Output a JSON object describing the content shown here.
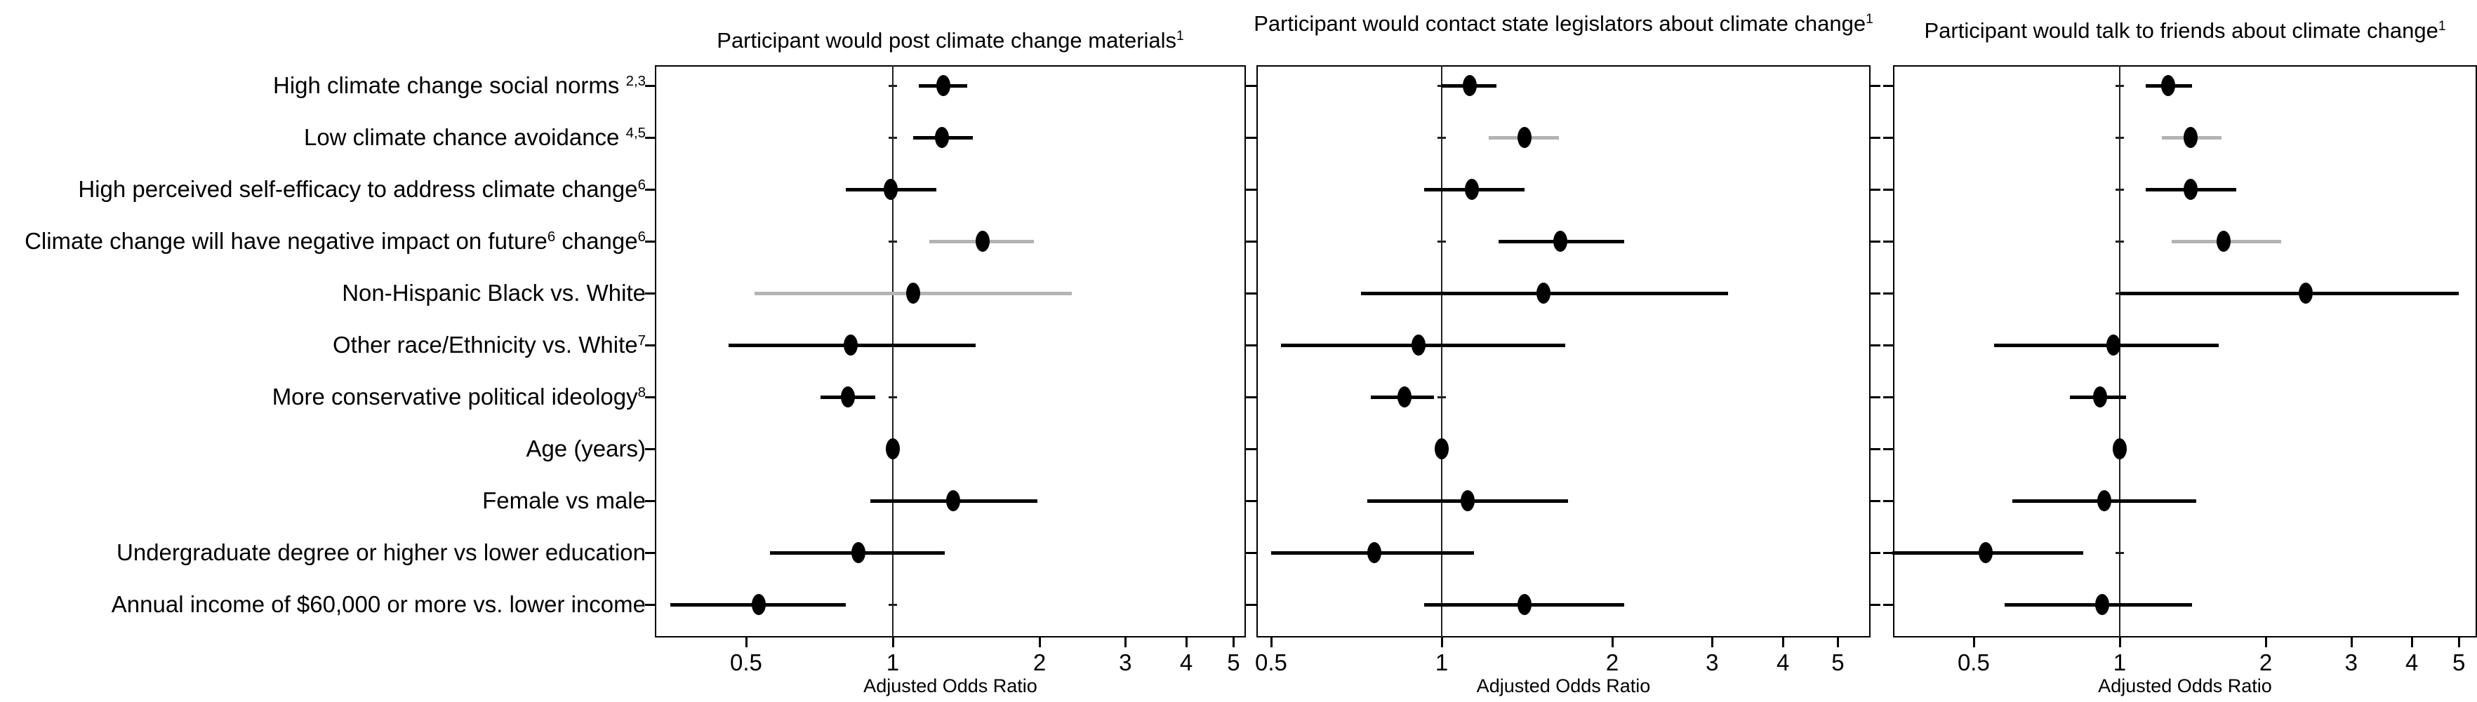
{
  "figure": {
    "background": "#ffffff"
  },
  "chart_data": {
    "type": "scatter",
    "variant": "forest-plot-3-panel",
    "xlabel": "Adjusted Odds Ratio",
    "xscale": "log",
    "x_ticks": [
      0.5,
      1,
      2,
      3,
      4,
      5
    ],
    "refline_x": 1,
    "grid": false,
    "legend": "none",
    "colors": {
      "marker": "#000000",
      "ci": "#000000",
      "ci_gray": "#b3b3b3",
      "refline": "#222222",
      "text": "#000000"
    },
    "rows": [
      {
        "parts": [
          {
            "t": "High climate change social norms "
          },
          {
            "s": "2,3"
          }
        ]
      },
      {
        "parts": [
          {
            "t": "Low climate chance avoidance "
          },
          {
            "s": "4,5"
          }
        ]
      },
      {
        "parts": [
          {
            "t": "High perceived self-efficacy to address climate change"
          },
          {
            "s": "6"
          }
        ]
      },
      {
        "parts": [
          {
            "t": "Climate change will have negative impact on future"
          },
          {
            "s": "6"
          },
          {
            "t": " change"
          },
          {
            "s": "6"
          }
        ]
      },
      {
        "parts": [
          {
            "t": "Non-Hispanic Black vs. White"
          }
        ]
      },
      {
        "parts": [
          {
            "t": "Other race/Ethnicity vs. White"
          },
          {
            "s": "7"
          }
        ]
      },
      {
        "parts": [
          {
            "t": "More conservative political ideology"
          },
          {
            "s": "8"
          }
        ]
      },
      {
        "parts": [
          {
            "t": "Age (years)"
          }
        ]
      },
      {
        "parts": [
          {
            "t": "Female vs male"
          }
        ]
      },
      {
        "parts": [
          {
            "t": "Undergraduate degree or higher vs lower education"
          }
        ]
      },
      {
        "parts": [
          {
            "t": "Annual income of $60,000 or more vs. lower income"
          }
        ]
      }
    ],
    "panels": [
      {
        "title_parts": [
          {
            "t": "Participant would post climate change materials"
          },
          {
            "s": "1"
          }
        ],
        "xlim": [
          0.325,
          5.3
        ],
        "points": [
          {
            "or": 1.27,
            "lo": 1.13,
            "hi": 1.42,
            "gray": false
          },
          {
            "or": 1.26,
            "lo": 1.1,
            "hi": 1.46,
            "gray": false
          },
          {
            "or": 0.99,
            "lo": 0.8,
            "hi": 1.23,
            "gray": false
          },
          {
            "or": 1.53,
            "lo": 1.19,
            "hi": 1.95,
            "gray": true
          },
          {
            "or": 1.1,
            "lo": 0.52,
            "hi": 2.33,
            "gray": true
          },
          {
            "or": 0.82,
            "lo": 0.46,
            "hi": 1.48,
            "gray": false
          },
          {
            "or": 0.81,
            "lo": 0.71,
            "hi": 0.92,
            "gray": false
          },
          {
            "or": 1.0,
            "lo": 0.99,
            "hi": 1.01,
            "gray": false
          },
          {
            "or": 1.33,
            "lo": 0.9,
            "hi": 1.98,
            "gray": false
          },
          {
            "or": 0.85,
            "lo": 0.56,
            "hi": 1.28,
            "gray": false
          },
          {
            "or": 0.53,
            "lo": 0.35,
            "hi": 0.8,
            "gray": false
          }
        ]
      },
      {
        "title_parts": [
          {
            "t": "Participant would contact state legislators about climate change"
          },
          {
            "s": "1"
          }
        ],
        "xlim": [
          0.471,
          5.71
        ],
        "points": [
          {
            "or": 1.12,
            "lo": 1.0,
            "hi": 1.25,
            "gray": false
          },
          {
            "or": 1.4,
            "lo": 1.21,
            "hi": 1.61,
            "gray": true
          },
          {
            "or": 1.13,
            "lo": 0.93,
            "hi": 1.4,
            "gray": false
          },
          {
            "or": 1.62,
            "lo": 1.26,
            "hi": 2.1,
            "gray": false
          },
          {
            "or": 1.51,
            "lo": 0.72,
            "hi": 3.2,
            "gray": false
          },
          {
            "or": 0.91,
            "lo": 0.52,
            "hi": 1.65,
            "gray": false
          },
          {
            "or": 0.86,
            "lo": 0.75,
            "hi": 0.97,
            "gray": false
          },
          {
            "or": 1.0,
            "lo": 0.99,
            "hi": 1.01,
            "gray": false
          },
          {
            "or": 1.11,
            "lo": 0.74,
            "hi": 1.67,
            "gray": false
          },
          {
            "or": 0.76,
            "lo": 0.5,
            "hi": 1.14,
            "gray": false
          },
          {
            "or": 1.4,
            "lo": 0.93,
            "hi": 2.1,
            "gray": false
          }
        ]
      },
      {
        "title_parts": [
          {
            "t": "Participant would talk to friends about climate change"
          },
          {
            "s": "1"
          }
        ],
        "xlim": [
          0.341,
          5.45
        ],
        "points": [
          {
            "or": 1.26,
            "lo": 1.13,
            "hi": 1.41,
            "gray": false
          },
          {
            "or": 1.4,
            "lo": 1.22,
            "hi": 1.62,
            "gray": true
          },
          {
            "or": 1.4,
            "lo": 1.13,
            "hi": 1.74,
            "gray": false
          },
          {
            "or": 1.64,
            "lo": 1.28,
            "hi": 2.15,
            "gray": true
          },
          {
            "or": 2.42,
            "lo": 1.0,
            "hi": 5.0,
            "gray": false
          },
          {
            "or": 0.97,
            "lo": 0.55,
            "hi": 1.6,
            "gray": false
          },
          {
            "or": 0.91,
            "lo": 0.79,
            "hi": 1.03,
            "gray": false
          },
          {
            "or": 1.0,
            "lo": 0.99,
            "hi": 1.01,
            "gray": false
          },
          {
            "or": 0.93,
            "lo": 0.6,
            "hi": 1.44,
            "gray": false
          },
          {
            "or": 0.53,
            "lo": 0.34,
            "hi": 0.84,
            "gray": false
          },
          {
            "or": 0.92,
            "lo": 0.58,
            "hi": 1.41,
            "gray": false
          }
        ]
      }
    ]
  }
}
